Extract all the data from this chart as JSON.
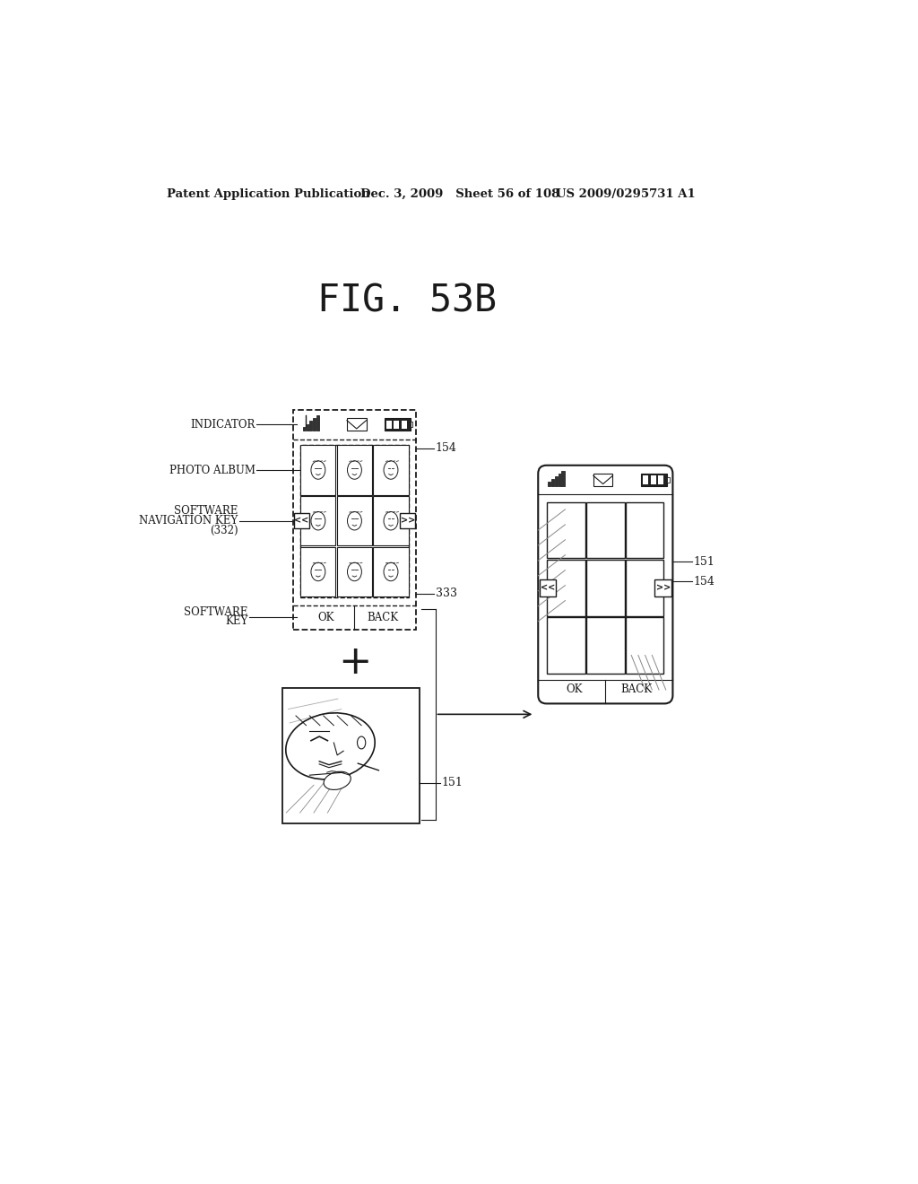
{
  "title": "FIG. 53B",
  "header_left": "Patent Application Publication",
  "header_mid": "Dec. 3, 2009   Sheet 56 of 108",
  "header_right": "US 2009/0295731 A1",
  "bg_color": "#ffffff",
  "line_color": "#1a1a1a",
  "label_indicator": "INDICATOR",
  "label_photo_album": "PHOTO ALBUM",
  "label_software_nav_1": "SOFTWARE",
  "label_software_nav_2": "NAVIGATION KEY",
  "label_software_nav_3": "(332)",
  "label_software_key_1": "SOFTWARE",
  "label_software_key_2": "KEY",
  "ref_154_left": "154",
  "ref_333": "333",
  "ref_151_photo": "151",
  "ref_151_right": "151",
  "ref_154_right": "154",
  "ok_text": "OK",
  "back_text": "BACK"
}
